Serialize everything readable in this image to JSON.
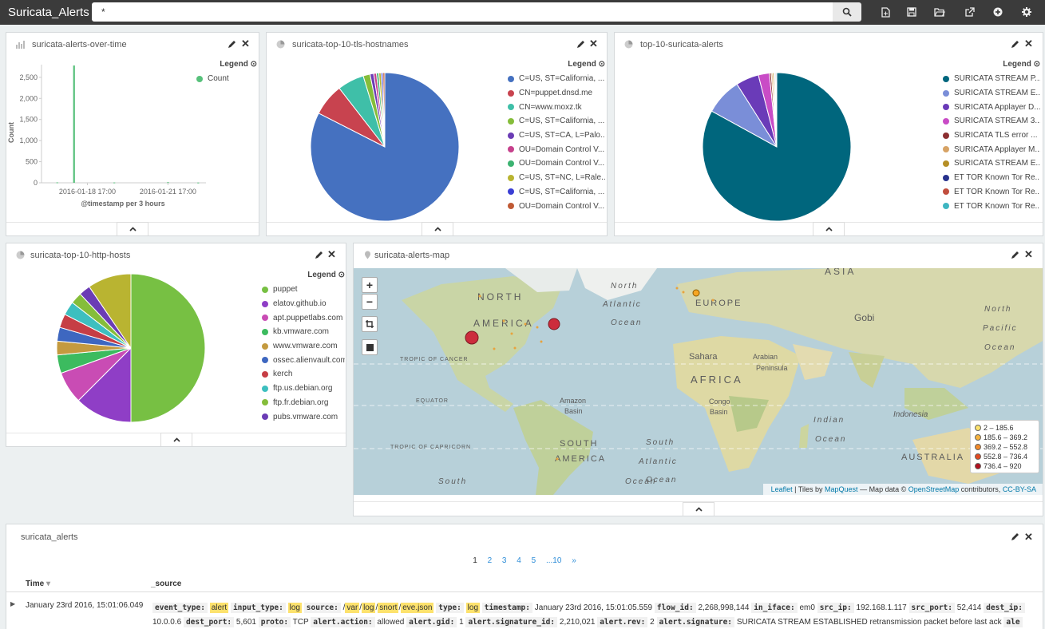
{
  "app": {
    "title": "Suricata_Alerts"
  },
  "search": {
    "value": "*"
  },
  "toolbar": [
    "new-dashboard-icon",
    "save-icon",
    "open-icon",
    "share-icon",
    "add-panel-icon",
    "options-icon"
  ],
  "colors": {
    "topbar": "#3b3b3b",
    "count": "#57c17b",
    "map_bubble": "#cc2c3c"
  },
  "panels": {
    "alerts_over_time": {
      "title": "suricata-alerts-over-time",
      "legend_title": "Legend",
      "legend": [
        "Count"
      ]
    },
    "tls": {
      "title": "suricata-top-10-tls-hostnames",
      "legend_title": "Legend",
      "legend": [
        "C=US, ST=California, ...",
        "CN=puppet.dnsd.me",
        "CN=www.moxz.tk",
        "C=US, ST=California, ...",
        "C=US, ST=CA, L=Palo...",
        "OU=Domain Control V...",
        "OU=Domain Control V...",
        "C=US, ST=NC, L=Rale...",
        "C=US, ST=California, ...",
        "OU=Domain Control V..."
      ]
    },
    "top_alerts": {
      "title": "top-10-suricata-alerts",
      "legend_title": "Legend",
      "legend": [
        "SURICATA STREAM P...",
        "SURICATA STREAM E...",
        "SURICATA Applayer D...",
        "SURICATA STREAM 3...",
        "SURICATA TLS error ...",
        "SURICATA Applayer M...",
        "SURICATA STREAM E...",
        "ET TOR Known Tor Re...",
        "ET TOR Known Tor Re...",
        "ET TOR Known Tor Re..."
      ]
    },
    "http_hosts": {
      "title": "suricata-top-10-http-hosts",
      "legend_title": "Legend",
      "legend": [
        "puppet",
        "elatov.github.io",
        "apt.puppetlabs.com",
        "kb.vmware.com",
        "www.vmware.com",
        "ossec.alienvault.com",
        "kerch",
        "ftp.us.debian.org",
        "ftp.fr.debian.org",
        "pubs.vmware.com",
        "ftp.debian.org"
      ]
    },
    "map": {
      "title": "suricata-alerts-map",
      "legend": [
        "2 – 185.6",
        "185.6 – 369.2",
        "369.2 – 552.8",
        "552.8 – 736.4",
        "736.4 – 920"
      ],
      "labels": [
        "ASIA",
        "North",
        "Atlantic",
        "Ocean",
        "NORTH",
        "AMERICA",
        "EUROPE",
        "Gobi",
        "North",
        "Pacific",
        "Ocean",
        "TROPIC OF CANCER",
        "Sahara",
        "Arabian",
        "Peninsula",
        "AFRICA",
        "EQUATOR",
        "Amazon",
        "Basin",
        "Congo",
        "Basin",
        "Indian",
        "Ocean",
        "Indonesia",
        "SOUTH",
        "AMERICA",
        "South",
        "Atlantic",
        "Ocean",
        "TROPIC OF CAPRICORN",
        "AUSTRALIA",
        "South",
        "Ocean"
      ],
      "attribution": {
        "leaflet": "Leaflet",
        "tiles": " | Tiles by ",
        "mapquest": "MapQuest",
        "mapdata": " — Map data © ",
        "osm": "OpenStreetMap",
        "contrib": " contributors, ",
        "license": "CC-BY-SA"
      }
    },
    "table": {
      "title": "suricata_alerts",
      "pages": [
        "1",
        "2",
        "3",
        "4",
        "5",
        "...10",
        "»"
      ],
      "columns": [
        "Time",
        "_source"
      ],
      "row_time": "January 23rd 2016, 15:01:06.049"
    }
  },
  "chart_data": [
    {
      "type": "bar",
      "title": "suricata-alerts-over-time",
      "xlabel": "@timestamp per 3 hours",
      "ylabel": "Count",
      "ylim": [
        0,
        2800
      ],
      "yticks": [
        "0",
        "500",
        "1,000",
        "1,500",
        "2,000",
        "2,500"
      ],
      "xticks": [
        "2016-01-18 17:00",
        "2016-01-21 17:00"
      ],
      "series": [
        {
          "name": "Count",
          "x": [
            "2016-01-17 14:00",
            "2016-01-18 05:00",
            "2016-01-19 17:00",
            "2016-01-21 17:00",
            "2016-01-22 20:00"
          ],
          "values": [
            10,
            2780,
            8,
            15,
            6
          ]
        }
      ]
    },
    {
      "type": "pie",
      "title": "suricata-top-10-tls-hostnames",
      "labels": [
        "C=US, ST=California, ...",
        "CN=puppet.dnsd.me",
        "CN=www.moxz.tk",
        "C=US, ST=California, ...",
        "C=US, ST=CA, L=Palo...",
        "OU=Domain Control V...",
        "OU=Domain Control V...",
        "C=US, ST=NC, L=Rale...",
        "C=US, ST=California, ...",
        "OU=Domain Control V..."
      ],
      "values": [
        82.5,
        7.0,
        5.8,
        1.5,
        0.8,
        0.6,
        0.5,
        0.5,
        0.4,
        0.4
      ],
      "colors": [
        "#4571c0",
        "#c8434f",
        "#3fbfa8",
        "#85bd3a",
        "#6b3cb5",
        "#c6418c",
        "#3cb371",
        "#b9b431",
        "#3a3ed4",
        "#c05a35"
      ]
    },
    {
      "type": "pie",
      "title": "top-10-suricata-alerts",
      "labels": [
        "SURICATA STREAM P...",
        "SURICATA STREAM E...",
        "SURICATA Applayer D...",
        "SURICATA STREAM 3...",
        "SURICATA TLS error ...",
        "SURICATA Applayer M...",
        "SURICATA STREAM E...",
        "ET TOR Known Tor Re...",
        "ET TOR Known Tor Re...",
        "ET TOR Known Tor Re..."
      ],
      "values": [
        83.0,
        8.0,
        5.0,
        2.4,
        0.4,
        0.3,
        0.3,
        0.2,
        0.2,
        0.2
      ],
      "colors": [
        "#00667d",
        "#7a8ed8",
        "#6a3bb8",
        "#c94cc6",
        "#8c2f31",
        "#d7a365",
        "#b58f26",
        "#28328d",
        "#c14e3e",
        "#3fb6c1"
      ]
    },
    {
      "type": "pie",
      "title": "suricata-top-10-http-hosts",
      "labels": [
        "puppet",
        "elatov.github.io",
        "apt.puppetlabs.com",
        "kb.vmware.com",
        "www.vmware.com",
        "ossec.alienvault.com",
        "kerch",
        "ftp.us.debian.org",
        "ftp.fr.debian.org",
        "pubs.vmware.com",
        "ftp.debian.org"
      ],
      "values": [
        50.0,
        12.5,
        7.0,
        4.0,
        3.0,
        3.0,
        3.0,
        3.0,
        2.5,
        2.5,
        9.5
      ],
      "colors": [
        "#77c043",
        "#8f3ec6",
        "#c94cb4",
        "#3cbb5f",
        "#c49a3f",
        "#3e67c0",
        "#c63e45",
        "#3dbfbf",
        "#85bd3a",
        "#6b3cb5",
        "#b9b431"
      ]
    }
  ]
}
